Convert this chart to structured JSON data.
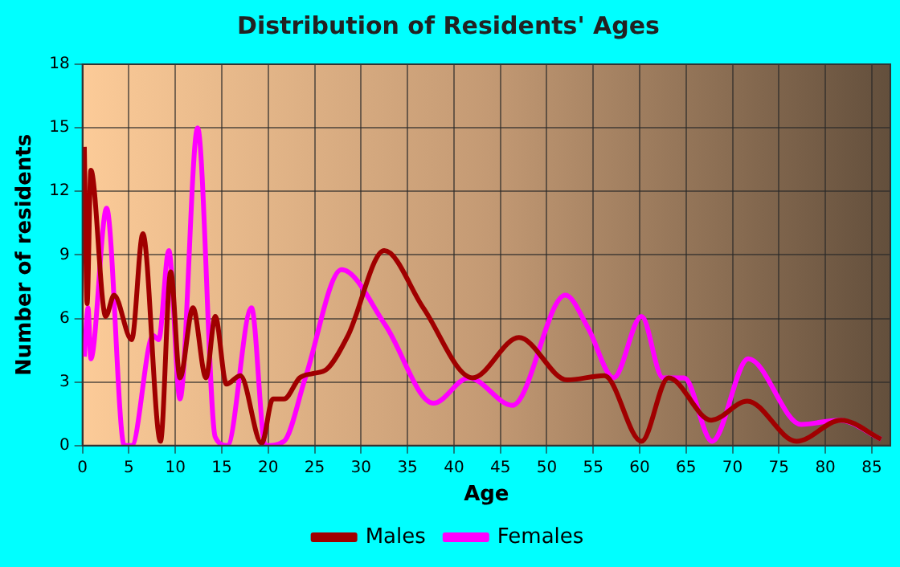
{
  "chart_data": {
    "type": "line",
    "title": "Distribution of Residents' Ages",
    "xlabel": "Age",
    "ylabel": "Number of residents",
    "xlim": [
      0,
      87
    ],
    "xticks": [
      0,
      5,
      10,
      15,
      20,
      25,
      30,
      35,
      40,
      45,
      50,
      55,
      60,
      65,
      70,
      75,
      80,
      85
    ],
    "ylim": [
      0,
      18
    ],
    "yticks": [
      0,
      3,
      6,
      9,
      12,
      15,
      18
    ],
    "grid": true,
    "legend": "bottom",
    "marker": "none",
    "line_style": "solid",
    "series": [
      {
        "name": "Males",
        "color": "#a00000",
        "x": [
          0.2,
          0.5,
          0.9,
          2.5,
          3.4,
          5.3,
          6.5,
          8.4,
          9.5,
          10.5,
          11.9,
          13.3,
          14.3,
          15.5,
          17,
          19.3,
          20.5,
          21.7,
          23.4,
          24.8,
          26.3,
          28.6,
          32.5,
          36.7,
          42,
          47,
          52.2,
          56.2,
          60.2,
          63.1,
          67.7,
          71.6,
          76.9,
          81.7,
          86
        ],
        "values": [
          14.1,
          6.7,
          13,
          6.1,
          7.1,
          5,
          10,
          0.2,
          8.2,
          3.2,
          6.5,
          3.2,
          6.1,
          2.9,
          3.3,
          0.1,
          2.2,
          2.2,
          3.2,
          3.4,
          3.6,
          5.2,
          9.2,
          6.5,
          3.2,
          5.1,
          3.1,
          3.3,
          0.2,
          3.2,
          1.2,
          2.1,
          0.2,
          1.2,
          0.3
        ]
      },
      {
        "name": "Females",
        "color": "#ff00ff",
        "x": [
          0.2,
          0.6,
          0.9,
          2.6,
          4.5,
          5.3,
          7.6,
          8.2,
          9.3,
          10.5,
          12.4,
          14.3,
          15.6,
          18.2,
          19.7,
          21.7,
          24,
          27.9,
          32.6,
          37.8,
          41.6,
          46.3,
          52,
          54.5,
          57.2,
          60.2,
          62.5,
          64.8,
          67.8,
          71.7,
          77.4,
          81.5,
          86
        ],
        "values": [
          4.2,
          6.5,
          4.1,
          11.2,
          0,
          0,
          5.2,
          5,
          9.2,
          2.2,
          15,
          0.4,
          0,
          6.5,
          0,
          0.2,
          3.2,
          8.3,
          5.7,
          2,
          3.2,
          1.9,
          7.1,
          5.5,
          3.2,
          6.1,
          3.2,
          3.2,
          0.2,
          4.1,
          1,
          1.2,
          0.3
        ]
      }
    ]
  }
}
